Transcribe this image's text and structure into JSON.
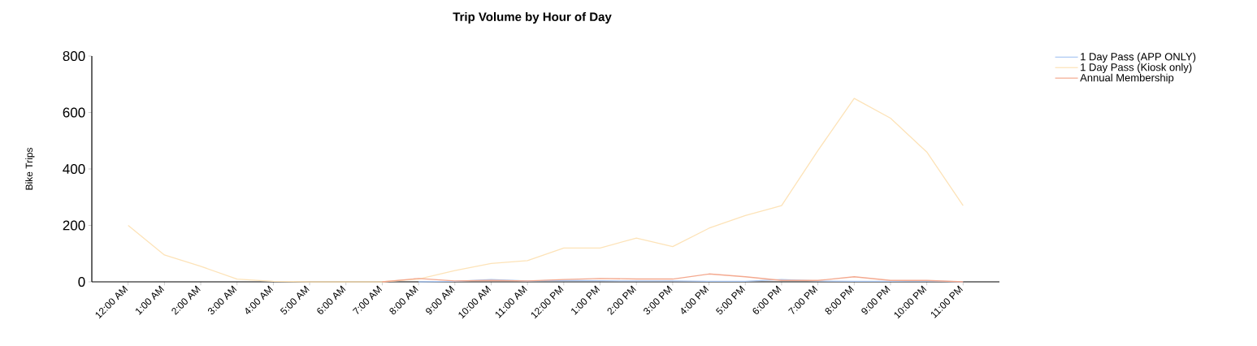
{
  "chart_data": {
    "type": "line",
    "title": "Trip Volume by Hour of Day",
    "ylabel": "Bike Trips",
    "categories": [
      "12:00 AM",
      "1:00 AM",
      "2:00 AM",
      "3:00 AM",
      "4:00 AM",
      "5:00 AM",
      "6:00 AM",
      "7:00 AM",
      "8:00 AM",
      "9:00 AM",
      "10:00 AM",
      "11:00 AM",
      "12:00 PM",
      "1:00 PM",
      "2:00 PM",
      "3:00 PM",
      "4:00 PM",
      "5:00 PM",
      "6:00 PM",
      "7:00 PM",
      "8:00 PM",
      "9:00 PM",
      "10:00 PM",
      "11:00 PM"
    ],
    "series": [
      {
        "name": "1 Day Pass (APP ONLY)",
        "color": "#a9c6f2",
        "values": [
          null,
          null,
          null,
          null,
          null,
          null,
          null,
          null,
          0,
          2,
          8,
          3,
          5,
          4,
          3,
          3,
          2,
          2,
          8,
          3,
          2,
          2,
          3,
          0
        ]
      },
      {
        "name": "1 Day Pass (Kiosk only)",
        "color": "#fde3b8",
        "values": [
          200,
          95,
          55,
          10,
          2,
          0,
          0,
          0,
          10,
          40,
          65,
          75,
          120,
          120,
          155,
          125,
          190,
          235,
          270,
          465,
          650,
          580,
          460,
          270
        ]
      },
      {
        "name": "Annual Membership",
        "color": "#f4a98f",
        "values": [
          null,
          null,
          null,
          null,
          null,
          null,
          null,
          0,
          12,
          3,
          5,
          3,
          8,
          12,
          10,
          10,
          28,
          18,
          5,
          5,
          18,
          5,
          5,
          0
        ]
      }
    ],
    "ylim": [
      0,
      800
    ],
    "yticks": [
      0,
      200,
      400,
      600,
      800
    ],
    "grid": false,
    "legend": "top right",
    "marker": "none",
    "line_style": "solid"
  }
}
